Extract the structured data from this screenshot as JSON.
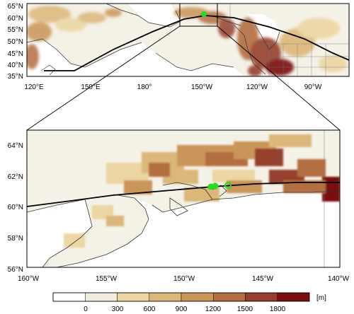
{
  "top_map": {
    "lat_labels": [
      "65°N",
      "60°N",
      "55°N",
      "50°N",
      "45°N",
      "40°N",
      "35°N"
    ],
    "lon_labels": [
      "120°E",
      "150°E",
      "180°",
      "150°W",
      "120°W",
      "90°W"
    ]
  },
  "bottom_map": {
    "lat_labels": [
      "64°N",
      "62°N",
      "60°N",
      "58°N",
      "56°N"
    ],
    "lon_labels": [
      "160°W",
      "155°W",
      "150°W",
      "145°W",
      "140°W"
    ]
  },
  "colorbar": {
    "tick_labels": [
      "0",
      "300",
      "600",
      "900",
      "1200",
      "1500",
      "1800"
    ],
    "unit": "[m]",
    "colors": [
      "#ffffff",
      "#f2eedf",
      "#ecd6a3",
      "#dcb77a",
      "#c99559",
      "#b36e42",
      "#963f2d",
      "#7a0f10"
    ]
  },
  "colors": {
    "marker": "#22dd22",
    "track": "#000000",
    "coast": "#333333"
  }
}
